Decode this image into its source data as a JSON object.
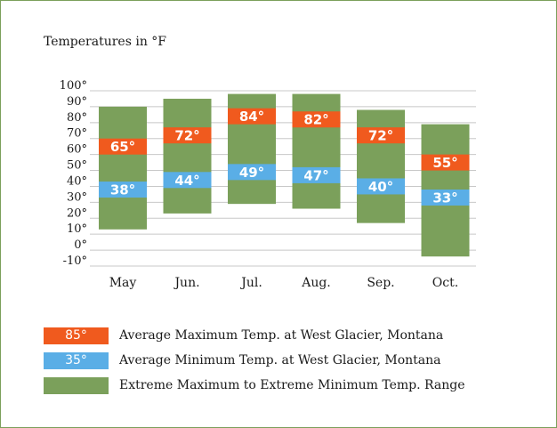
{
  "chart_data": {
    "type": "bar",
    "title": "Temperatures in °F",
    "categories": [
      "May",
      "Jun.",
      "Jul.",
      "Aug.",
      "Sep.",
      "Oct."
    ],
    "ylim": [
      -10,
      100
    ],
    "yticks": [
      "100°",
      "90°",
      "80°",
      "70°",
      "60°",
      "50°",
      "40°",
      "30°",
      "20°",
      "10°",
      "0°",
      "-10°"
    ],
    "grid": true,
    "series": [
      {
        "name": "Extreme Maximum to Extreme Minimum Temp. Range",
        "low": [
          13,
          23,
          29,
          26,
          17,
          -4
        ],
        "high": [
          90,
          95,
          98,
          98,
          88,
          79
        ]
      },
      {
        "name": "Average Maximum Temp. at West Glacier, Montana",
        "values": [
          65,
          72,
          84,
          82,
          72,
          55
        ],
        "labels": [
          "65°",
          "72°",
          "84°",
          "82°",
          "72°",
          "55°"
        ]
      },
      {
        "name": "Average Minimum Temp. at West Glacier, Montana",
        "values": [
          38,
          44,
          49,
          47,
          40,
          33
        ],
        "labels": [
          "38°",
          "44°",
          "49°",
          "47°",
          "40°",
          "33°"
        ]
      }
    ],
    "colors": {
      "range": "#7ba05b",
      "avg_max": "#f05a1e",
      "avg_min": "#5aaee6",
      "grid": "#c8c8c8"
    }
  },
  "legend": [
    {
      "swatch_text": "85°",
      "label": "Average Maximum Temp. at West Glacier, Montana",
      "color": "#f05a1e"
    },
    {
      "swatch_text": "35°",
      "label": "Average Minimum Temp. at West Glacier, Montana",
      "color": "#5aaee6"
    },
    {
      "swatch_text": "",
      "label": "Extreme Maximum to Extreme Minimum Temp. Range",
      "color": "#7ba05b"
    }
  ]
}
